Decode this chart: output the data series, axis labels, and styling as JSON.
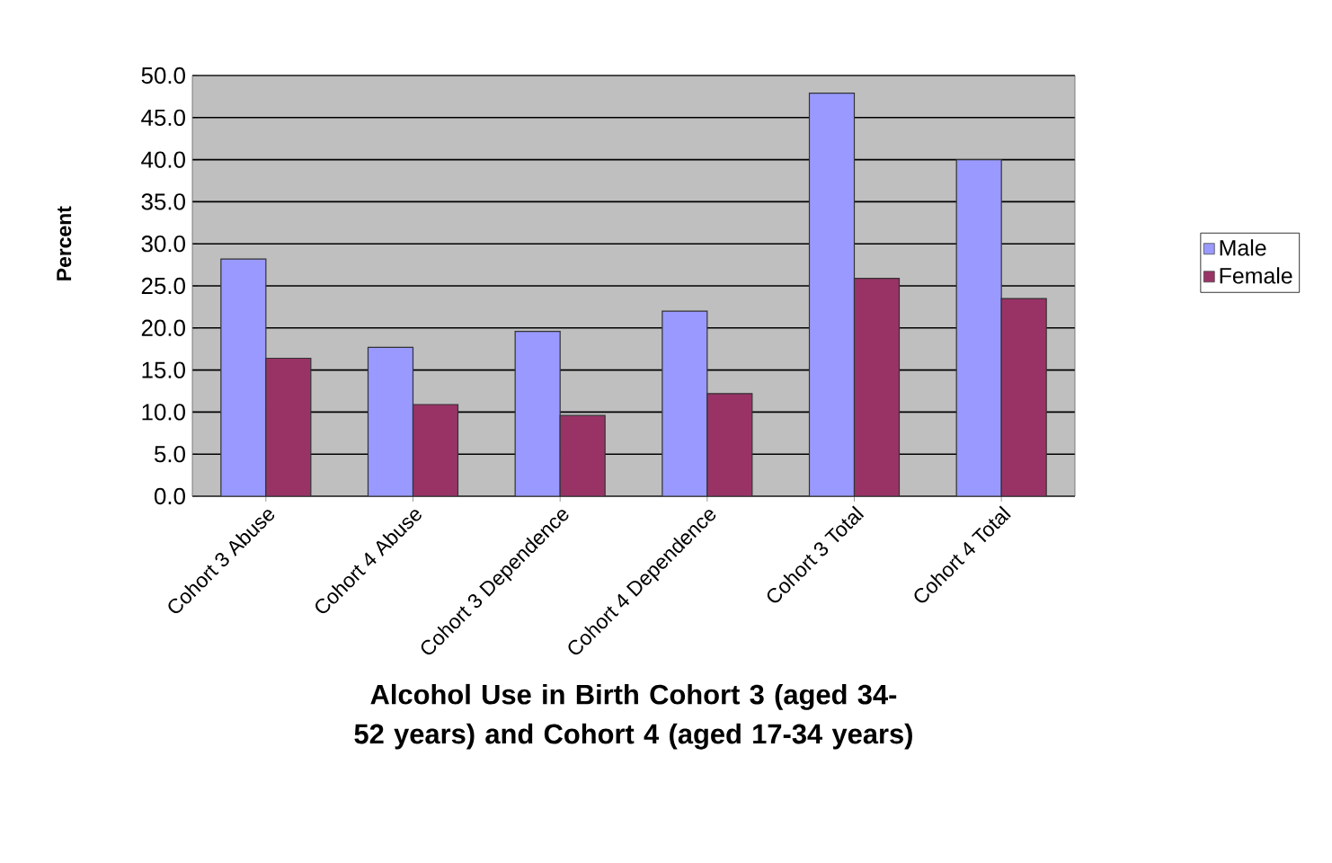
{
  "chart_data": {
    "type": "bar",
    "xlabel": "Alcohol Use in Birth Cohort 3 (aged 34-52 years) and Cohort 4 (aged 17-34 years)",
    "ylabel": "Percent",
    "categories": [
      "Cohort 3 Abuse",
      "Cohort 4 Abuse",
      "Cohort 3 Dependence",
      "Cohort 4 Dependence",
      "Cohort 3 Total",
      "Cohort 4 Total"
    ],
    "series": [
      {
        "name": "Male",
        "color": "#9999ff",
        "values": [
          28.2,
          17.7,
          19.6,
          22.0,
          47.9,
          40.0
        ]
      },
      {
        "name": "Female",
        "color": "#993366",
        "values": [
          16.4,
          10.9,
          9.6,
          12.2,
          25.9,
          23.5
        ]
      }
    ],
    "ylim": [
      0,
      50
    ],
    "yticks": [
      {
        "value": 0,
        "label": "0.0"
      },
      {
        "value": 5,
        "label": "5.0"
      },
      {
        "value": 10,
        "label": "10.0"
      },
      {
        "value": 15,
        "label": "15.0"
      },
      {
        "value": 20,
        "label": "20.0"
      },
      {
        "value": 25,
        "label": "25.0"
      },
      {
        "value": 30,
        "label": "30.0"
      },
      {
        "value": 35,
        "label": "35.0"
      },
      {
        "value": 40,
        "label": "40.0"
      },
      {
        "value": 45,
        "label": "45.0"
      },
      {
        "value": 50,
        "label": "50.0"
      }
    ],
    "grid": "y",
    "legend": "right"
  }
}
